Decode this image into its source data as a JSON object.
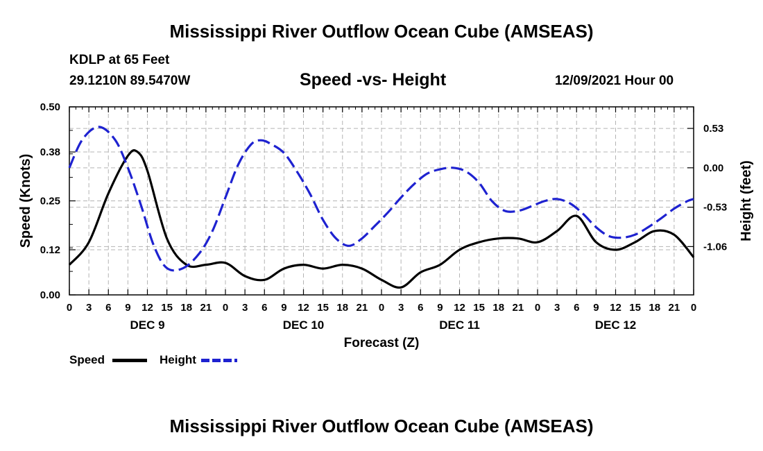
{
  "header": {
    "title": "Mississippi River Outflow Ocean Cube (AMSEAS)",
    "station": "KDLP at 65 Feet",
    "coords": "29.1210N  89.5470W",
    "plot_title": "Speed -vs- Height",
    "datetime": "12/09/2021 Hour 00"
  },
  "footer": {
    "title": "Mississippi River Outflow Ocean Cube (AMSEAS)"
  },
  "legend": {
    "speed_label": "Speed",
    "height_label": "Height"
  },
  "colors": {
    "speed": "#000000",
    "height": "#1e22d0",
    "grid": "#b4b4b4"
  },
  "chart_data": {
    "type": "line",
    "title": "Speed -vs- Height",
    "xlabel": "Forecast (Z)",
    "ylabel_left": "Speed (Knots)",
    "ylabel_right": "Height (feet)",
    "x_range": [
      0,
      96
    ],
    "x_ticks": [
      "0",
      "3",
      "6",
      "9",
      "12",
      "15",
      "18",
      "21",
      "0",
      "3",
      "6",
      "9",
      "12",
      "15",
      "18",
      "21",
      "0",
      "3",
      "6",
      "9",
      "12",
      "15",
      "18",
      "21",
      "0",
      "3",
      "6",
      "9",
      "12",
      "15",
      "18",
      "21",
      "0"
    ],
    "day_labels": [
      "DEC 9",
      "DEC 10",
      "DEC 11",
      "DEC 12"
    ],
    "y_left_range": [
      0.0,
      0.5
    ],
    "y_left_ticks": [
      "0.00",
      "0.12",
      "0.25",
      "0.38",
      "0.50"
    ],
    "y_right_range": [
      -1.71,
      0.82
    ],
    "y_right_ticks": [
      "-1.06",
      "-0.53",
      "0.00",
      "0.53"
    ],
    "grid": true,
    "series": [
      {
        "name": "Speed",
        "axis": "left",
        "style": "solid",
        "x": [
          0,
          3,
          6,
          9,
          10.5,
          12,
          15,
          18,
          21,
          24,
          27,
          30,
          33,
          36,
          39,
          42,
          45,
          48,
          51,
          54,
          57,
          60,
          63,
          66,
          69,
          72,
          75,
          78,
          81,
          84,
          87,
          90,
          93,
          96
        ],
        "y": [
          0.08,
          0.14,
          0.27,
          0.37,
          0.38,
          0.33,
          0.15,
          0.08,
          0.08,
          0.085,
          0.05,
          0.04,
          0.07,
          0.08,
          0.07,
          0.08,
          0.07,
          0.04,
          0.02,
          0.06,
          0.08,
          0.12,
          0.14,
          0.15,
          0.15,
          0.14,
          0.17,
          0.21,
          0.14,
          0.12,
          0.14,
          0.17,
          0.16,
          0.1
        ]
      },
      {
        "name": "Height",
        "axis": "right",
        "style": "dashed",
        "x": [
          0,
          2,
          4.5,
          7,
          9,
          11,
          13,
          15,
          17.5,
          20,
          22,
          24,
          26,
          28,
          29.5,
          31,
          33,
          35,
          37,
          39,
          41,
          43,
          45,
          47,
          49,
          51,
          53,
          55,
          57,
          59,
          61,
          63,
          65,
          67,
          69,
          71,
          73,
          75,
          77,
          79,
          81,
          83,
          85,
          87,
          89,
          91,
          93,
          95,
          96
        ],
        "y": [
          0.0,
          0.38,
          0.55,
          0.38,
          0.0,
          -0.5,
          -1.05,
          -1.35,
          -1.35,
          -1.15,
          -0.85,
          -0.4,
          0.05,
          0.32,
          0.37,
          0.32,
          0.2,
          -0.05,
          -0.35,
          -0.7,
          -0.95,
          -1.05,
          -0.95,
          -0.78,
          -0.6,
          -0.4,
          -0.22,
          -0.08,
          -0.02,
          0.0,
          -0.05,
          -0.2,
          -0.45,
          -0.58,
          -0.58,
          -0.52,
          -0.45,
          -0.42,
          -0.48,
          -0.62,
          -0.8,
          -0.92,
          -0.94,
          -0.9,
          -0.8,
          -0.68,
          -0.55,
          -0.45,
          -0.42
        ]
      }
    ]
  }
}
